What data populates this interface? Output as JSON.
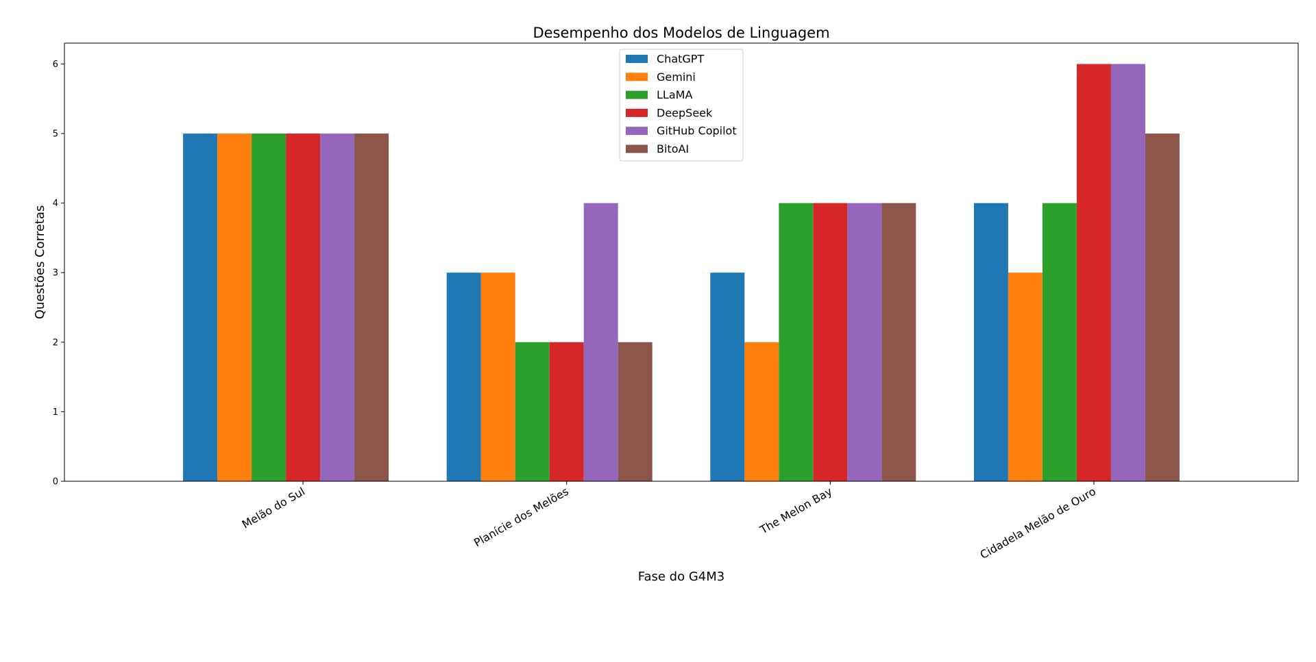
{
  "chart_data": {
    "type": "bar",
    "title": "Desempenho dos Modelos de Linguagem",
    "xlabel": "Fase do G4M3",
    "ylabel": "Questões Corretas",
    "categories": [
      "Melão do Sul",
      "Planície dos Melões",
      "The Melon Bay",
      "Cidadela Melão de Ouro"
    ],
    "series": [
      {
        "name": "ChatGPT",
        "color": "#1f77b4",
        "values": [
          5,
          3,
          3,
          4
        ]
      },
      {
        "name": "Gemini",
        "color": "#ff7f0e",
        "values": [
          5,
          3,
          2,
          3
        ]
      },
      {
        "name": "LLaMA",
        "color": "#2ca02c",
        "values": [
          5,
          2,
          4,
          4
        ]
      },
      {
        "name": "DeepSeek",
        "color": "#d62728",
        "values": [
          5,
          2,
          4,
          6
        ]
      },
      {
        "name": "GitHub Copilot",
        "color": "#9467bd",
        "values": [
          5,
          4,
          4,
          6
        ]
      },
      {
        "name": "BitoAI",
        "color": "#8c564b",
        "values": [
          5,
          2,
          4,
          5
        ]
      }
    ],
    "ylim": [
      0,
      6.3
    ],
    "yticks": [
      0,
      1,
      2,
      3,
      4,
      5,
      6
    ],
    "grid": false,
    "legend_position": "top-center"
  }
}
